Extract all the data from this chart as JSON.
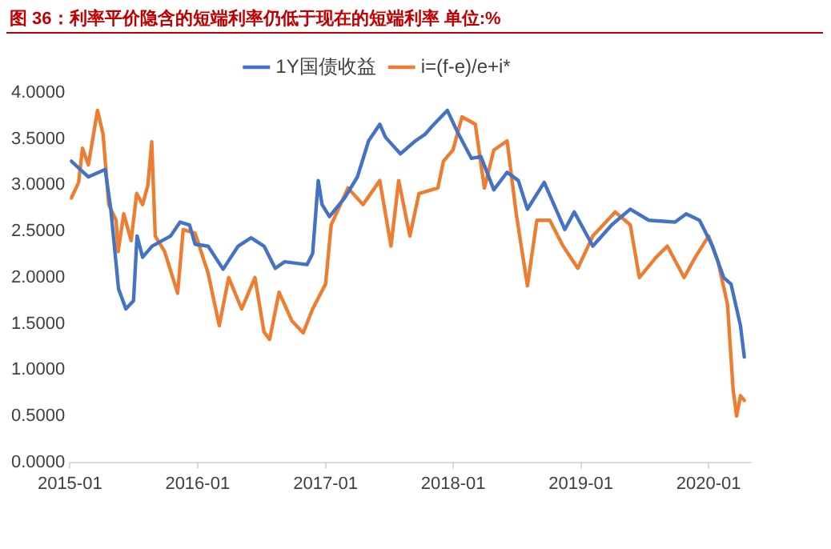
{
  "chart_data": {
    "type": "line",
    "title": "图 36：利率平价隐含的短端利率仍低于现在的短端利率  单位:%",
    "xlim": [
      "2015-01",
      "2020-05"
    ],
    "xticks": [
      "2015-01",
      "2016-01",
      "2017-01",
      "2018-01",
      "2019-01",
      "2020-01"
    ],
    "ylim": [
      0,
      4
    ],
    "yticks": [
      {
        "value": 0,
        "label": "0.0000"
      },
      {
        "value": 0.5,
        "label": "0.5000"
      },
      {
        "value": 1,
        "label": "1.0000"
      },
      {
        "value": 1.5,
        "label": "1.5000"
      },
      {
        "value": 2,
        "label": "2.0000"
      },
      {
        "value": 2.5,
        "label": "2.5000"
      },
      {
        "value": 3,
        "label": "3.0000"
      },
      {
        "value": 3.5,
        "label": "3.5000"
      },
      {
        "value": 4,
        "label": "4.0000"
      }
    ],
    "grid": false,
    "legend": "top",
    "marker": "none",
    "line_style": "solid",
    "series": [
      {
        "name": "1Y国债收益",
        "color": "#4472c4",
        "x": [
          "2015-01-05",
          "2015-02-23",
          "2015-04-12",
          "2015-04-28",
          "2015-05-20",
          "2015-06-10",
          "2015-07-02",
          "2015-07-12",
          "2015-07-28",
          "2015-08-24",
          "2015-10-16",
          "2015-11-12",
          "2015-12-09",
          "2015-12-25",
          "2016-01-31",
          "2016-03-14",
          "2016-04-26",
          "2016-06-02",
          "2016-07-09",
          "2016-08-10",
          "2016-09-06",
          "2016-11-09",
          "2016-11-25",
          "2016-12-11",
          "2016-12-22",
          "2017-01-12",
          "2017-02-24",
          "2017-04-02",
          "2017-05-04",
          "2017-06-05",
          "2017-06-21",
          "2017-08-03",
          "2017-09-15",
          "2017-10-12",
          "2017-11-02",
          "2017-12-15",
          "2018-01-10",
          "2018-02-22",
          "2018-03-21",
          "2018-04-27",
          "2018-06-04",
          "2018-07-06",
          "2018-08-01",
          "2018-09-18",
          "2018-11-16",
          "2018-12-13",
          "2019-02-04",
          "2019-03-30",
          "2019-05-22",
          "2019-07-14",
          "2019-09-27",
          "2019-10-29",
          "2019-12-06",
          "2020-01-12",
          "2020-02-13",
          "2020-03-05",
          "2020-04-01",
          "2020-04-12"
        ],
        "values": [
          3.26,
          3.09,
          3.17,
          2.74,
          1.88,
          1.66,
          1.75,
          2.45,
          2.22,
          2.34,
          2.45,
          2.6,
          2.57,
          2.36,
          2.34,
          2.09,
          2.34,
          2.43,
          2.34,
          2.1,
          2.17,
          2.14,
          2.26,
          3.05,
          2.79,
          2.66,
          2.86,
          3.09,
          3.48,
          3.66,
          3.52,
          3.34,
          3.48,
          3.55,
          3.64,
          3.81,
          3.6,
          3.29,
          3.31,
          2.95,
          3.14,
          3.05,
          2.74,
          3.03,
          2.52,
          2.71,
          2.34,
          2.57,
          2.74,
          2.62,
          2.6,
          2.69,
          2.62,
          2.34,
          2.0,
          1.93,
          1.48,
          1.14
        ]
      },
      {
        "name": "i=(f-e)/e+i*",
        "color": "#ed7d31",
        "x": [
          "2015-01-05",
          "2015-01-26",
          "2015-02-06",
          "2015-02-23",
          "2015-03-21",
          "2015-04-06",
          "2015-04-22",
          "2015-05-13",
          "2015-05-19",
          "2015-06-04",
          "2015-06-25",
          "2015-07-11",
          "2015-07-28",
          "2015-08-12",
          "2015-08-23",
          "2015-09-02",
          "2015-09-29",
          "2015-11-05",
          "2015-11-21",
          "2015-12-25",
          "2016-01-31",
          "2016-03-03",
          "2016-03-30",
          "2016-05-06",
          "2016-06-13",
          "2016-07-09",
          "2016-07-25",
          "2016-08-21",
          "2016-09-27",
          "2016-10-29",
          "2016-11-25",
          "2017-01-01",
          "2017-01-17",
          "2017-03-06",
          "2017-04-18",
          "2017-06-05",
          "2017-07-07",
          "2017-07-29",
          "2017-08-30",
          "2017-09-25",
          "2017-11-18",
          "2017-12-04",
          "2017-12-31",
          "2018-01-26",
          "2018-03-05",
          "2018-03-31",
          "2018-04-27",
          "2018-06-04",
          "2018-06-30",
          "2018-08-01",
          "2018-08-28",
          "2018-10-04",
          "2018-11-11",
          "2018-12-23",
          "2019-02-04",
          "2019-04-09",
          "2019-05-22",
          "2019-06-17",
          "2019-08-04",
          "2019-09-05",
          "2019-10-23",
          "2019-11-24",
          "2020-01-01",
          "2020-01-28",
          "2020-02-24",
          "2020-03-11",
          "2020-03-21",
          "2020-04-01",
          "2020-04-12"
        ],
        "values": [
          2.86,
          3.03,
          3.4,
          3.22,
          3.81,
          3.55,
          2.79,
          2.62,
          2.28,
          2.69,
          2.4,
          2.91,
          2.79,
          3.0,
          3.47,
          2.45,
          2.28,
          1.83,
          2.52,
          2.48,
          2.05,
          1.48,
          2.0,
          1.66,
          2.0,
          1.41,
          1.33,
          1.84,
          1.53,
          1.4,
          1.66,
          1.93,
          2.57,
          2.97,
          2.79,
          3.05,
          2.34,
          3.05,
          2.45,
          2.91,
          2.97,
          3.26,
          3.38,
          3.74,
          3.66,
          2.97,
          3.38,
          3.48,
          2.69,
          1.91,
          2.62,
          2.62,
          2.34,
          2.1,
          2.45,
          2.71,
          2.57,
          2.0,
          2.22,
          2.34,
          2.0,
          2.22,
          2.45,
          2.17,
          1.71,
          0.79,
          0.5,
          0.72,
          0.67
        ]
      }
    ]
  }
}
